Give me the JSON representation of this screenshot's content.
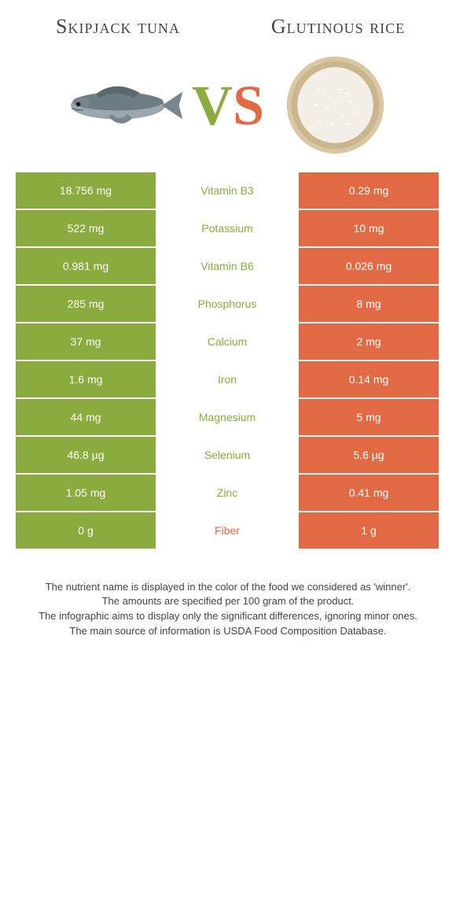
{
  "titles": {
    "left": "Skipjack tuna",
    "right": "Glutinous rice"
  },
  "vs": {
    "v": "V",
    "s": "S"
  },
  "colors": {
    "green": "#8aab3d",
    "orange": "#e16a45",
    "bg": "#ffffff",
    "text": "#444444"
  },
  "rows": [
    {
      "nutrient": "Vitamin B3",
      "left": "18.756 mg",
      "right": "0.29 mg",
      "winner": "left"
    },
    {
      "nutrient": "Potassium",
      "left": "522 mg",
      "right": "10 mg",
      "winner": "left"
    },
    {
      "nutrient": "Vitamin B6",
      "left": "0.981 mg",
      "right": "0.026 mg",
      "winner": "left"
    },
    {
      "nutrient": "Phosphorus",
      "left": "285 mg",
      "right": "8 mg",
      "winner": "left"
    },
    {
      "nutrient": "Calcium",
      "left": "37 mg",
      "right": "2 mg",
      "winner": "left"
    },
    {
      "nutrient": "Iron",
      "left": "1.6 mg",
      "right": "0.14 mg",
      "winner": "left"
    },
    {
      "nutrient": "Magnesium",
      "left": "44 mg",
      "right": "5 mg",
      "winner": "left"
    },
    {
      "nutrient": "Selenium",
      "left": "46.8 µg",
      "right": "5.6 µg",
      "winner": "left"
    },
    {
      "nutrient": "Zinc",
      "left": "1.05 mg",
      "right": "0.41 mg",
      "winner": "left"
    },
    {
      "nutrient": "Fiber",
      "left": "0 g",
      "right": "1 g",
      "winner": "right"
    }
  ],
  "footnotes": [
    "The nutrient name is displayed in the color of the food we considered as 'winner'.",
    "The amounts are specified per 100 gram of the product.",
    "The infographic aims to display only the significant differences, ignoring minor ones.",
    "The main source of information is USDA Food Composition Database."
  ]
}
